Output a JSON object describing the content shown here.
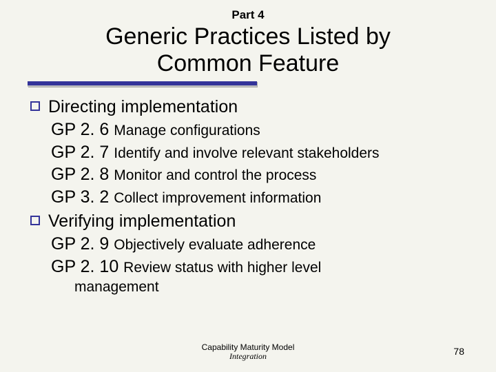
{
  "colors": {
    "background": "#f4f4ee",
    "accent": "#333399",
    "text": "#000000"
  },
  "header": {
    "part_label": "Part 4",
    "title_line1": "Generic Practices Listed by",
    "title_line2": "Common Feature"
  },
  "sections": [
    {
      "heading": "Directing implementation",
      "items": [
        {
          "code": "GP 2. 6",
          "desc": "Manage configurations"
        },
        {
          "code": "GP 2. 7",
          "desc": "Identify and involve relevant stakeholders"
        },
        {
          "code": "GP 2. 8",
          "desc": "Monitor and control the process"
        },
        {
          "code": "GP 3. 2",
          "desc": "Collect improvement information"
        }
      ]
    },
    {
      "heading": "Verifying implementation",
      "items": [
        {
          "code": "GP 2. 9",
          "desc": "Objectively evaluate adherence"
        },
        {
          "code": "GP 2. 10",
          "desc": "Review status with higher level",
          "cont": "management"
        }
      ]
    }
  ],
  "footer": {
    "line1": "Capability Maturity Model",
    "line2": "Integration"
  },
  "page_number": "78"
}
